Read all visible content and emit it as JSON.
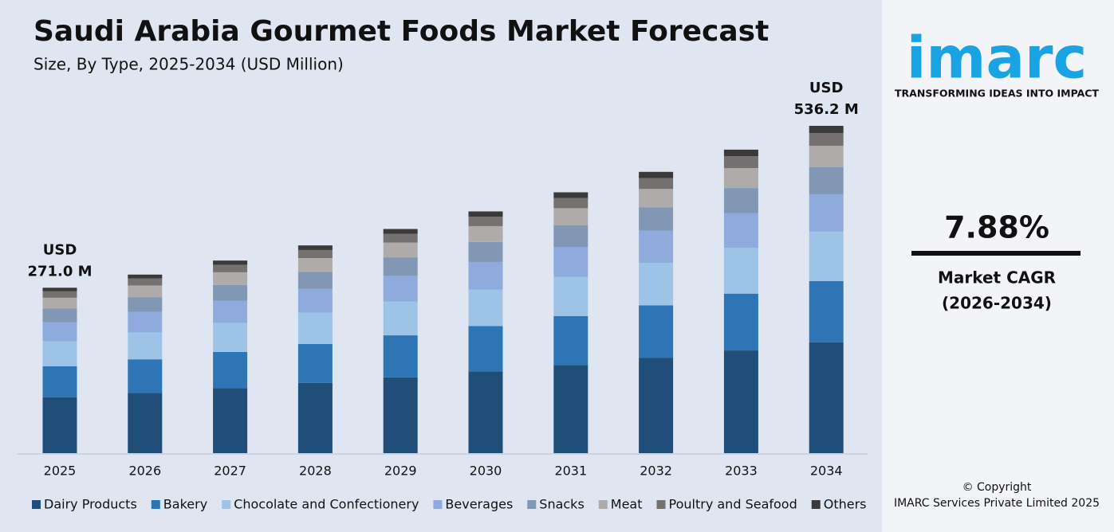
{
  "chart_data": {
    "type": "stacked_bar",
    "title": "Saudi Arabia Gourmet Foods Market Forecast",
    "subtitle": "Size, By Type, 2025-2034 (USD Million)",
    "categories": [
      "2025",
      "2026",
      "2027",
      "2028",
      "2029",
      "2030",
      "2031",
      "2032",
      "2033",
      "2034"
    ],
    "series": [
      {
        "name": "Dairy Products",
        "color": "#1f4e79",
        "values": [
          91.7,
          98.9,
          106.7,
          115.1,
          124.2,
          133.9,
          144.5,
          155.9,
          168.2,
          181.5
        ]
      },
      {
        "name": "Bakery",
        "color": "#2e75b6",
        "values": [
          50.8,
          54.8,
          59.1,
          63.7,
          68.8,
          74.2,
          80.0,
          86.3,
          93.1,
          100.4
        ]
      },
      {
        "name": "Chocolate and Confectionery",
        "color": "#9dc3e6",
        "values": [
          40.9,
          44.1,
          47.6,
          51.4,
          55.4,
          59.8,
          64.5,
          69.5,
          75.0,
          80.9
        ]
      },
      {
        "name": "Beverages",
        "color": "#8faadc",
        "values": [
          31.0,
          33.5,
          36.1,
          38.9,
          42.0,
          45.3,
          48.9,
          52.7,
          56.9,
          61.3
        ]
      },
      {
        "name": "Snacks",
        "color": "#8297b3",
        "values": [
          22.4,
          24.2,
          26.1,
          28.1,
          30.4,
          32.7,
          35.3,
          38.1,
          41.1,
          44.3
        ]
      },
      {
        "name": "Meat",
        "color": "#afabab",
        "values": [
          17.8,
          19.2,
          20.7,
          22.4,
          24.1,
          26.0,
          28.1,
          30.3,
          32.7,
          35.2
        ]
      },
      {
        "name": "Poultry and Seafood",
        "color": "#767171",
        "values": [
          10.5,
          11.4,
          12.3,
          13.2,
          14.3,
          15.4,
          16.6,
          17.9,
          19.3,
          20.9
        ]
      },
      {
        "name": "Others",
        "color": "#3a3a3a",
        "values": [
          5.9,
          6.4,
          6.9,
          7.5,
          8.0,
          8.7,
          9.4,
          10.1,
          10.9,
          11.7
        ]
      }
    ],
    "total_labels": [
      {
        "category": "2025",
        "value": 271.0,
        "lines": [
          "USD",
          "271.0 M"
        ]
      },
      {
        "category": "2034",
        "value": 536.2,
        "lines": [
          "USD",
          "536.2 M"
        ]
      }
    ],
    "legend": "bottom"
  },
  "branding": {
    "logo": "imarc",
    "tagline": "TRANSFORMING IDEAS INTO IMPACT",
    "cagr": "7.88%",
    "cagr_label": "Market CAGR",
    "cagr_period": "(2026-2034)",
    "copyright": "© Copyright",
    "company": "IMARC Services Private Limited 2025"
  }
}
